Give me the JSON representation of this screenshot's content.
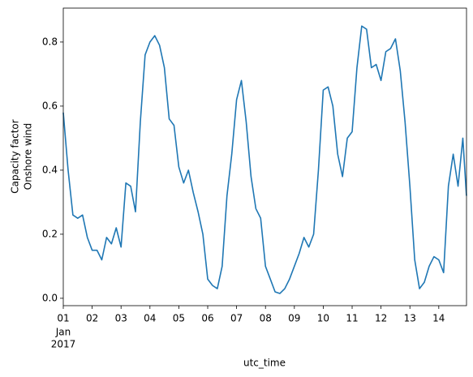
{
  "chart_data": {
    "type": "line",
    "ylabel": [
      "Capacity factor",
      "Onshore wind"
    ],
    "xlabel": "utc_time",
    "month_label": "Jan",
    "year_label": "2017",
    "color": "#1f77b4",
    "x": [
      1,
      1.167,
      1.333,
      1.5,
      1.667,
      1.833,
      2,
      2.167,
      2.333,
      2.5,
      2.667,
      2.833,
      3,
      3.167,
      3.333,
      3.5,
      3.667,
      3.833,
      4,
      4.167,
      4.333,
      4.5,
      4.667,
      4.833,
      5,
      5.167,
      5.333,
      5.5,
      5.667,
      5.833,
      6,
      6.167,
      6.333,
      6.5,
      6.667,
      6.833,
      7,
      7.167,
      7.333,
      7.5,
      7.667,
      7.833,
      8,
      8.167,
      8.333,
      8.5,
      8.667,
      8.833,
      9,
      9.167,
      9.333,
      9.5,
      9.667,
      9.833,
      10,
      10.167,
      10.333,
      10.5,
      10.667,
      10.833,
      11,
      11.167,
      11.333,
      11.5,
      11.667,
      11.833,
      12,
      12.167,
      12.333,
      12.5,
      12.667,
      12.833,
      13,
      13.167,
      13.333,
      13.5,
      13.667,
      13.833,
      14,
      14.167,
      14.333,
      14.5,
      14.667,
      14.833,
      14.958
    ],
    "values": [
      0.58,
      0.4,
      0.26,
      0.25,
      0.26,
      0.19,
      0.15,
      0.15,
      0.12,
      0.19,
      0.17,
      0.22,
      0.16,
      0.36,
      0.35,
      0.27,
      0.55,
      0.76,
      0.8,
      0.82,
      0.79,
      0.72,
      0.56,
      0.54,
      0.41,
      0.36,
      0.4,
      0.33,
      0.27,
      0.2,
      0.06,
      0.04,
      0.03,
      0.1,
      0.32,
      0.45,
      0.62,
      0.68,
      0.55,
      0.38,
      0.28,
      0.25,
      0.1,
      0.06,
      0.02,
      0.015,
      0.03,
      0.06,
      0.1,
      0.14,
      0.19,
      0.16,
      0.2,
      0.4,
      0.65,
      0.66,
      0.6,
      0.45,
      0.38,
      0.5,
      0.52,
      0.72,
      0.85,
      0.84,
      0.72,
      0.73,
      0.68,
      0.77,
      0.78,
      0.81,
      0.71,
      0.55,
      0.35,
      0.12,
      0.03,
      0.05,
      0.1,
      0.13,
      0.12,
      0.08,
      0.35,
      0.45,
      0.35,
      0.5,
      0.32
    ],
    "xlim": [
      1,
      14.96
    ],
    "xticks": [
      {
        "value": 1,
        "label": "01"
      },
      {
        "value": 2,
        "label": "02"
      },
      {
        "value": 3,
        "label": "03"
      },
      {
        "value": 4,
        "label": "04"
      },
      {
        "value": 5,
        "label": "05"
      },
      {
        "value": 6,
        "label": "06"
      },
      {
        "value": 7,
        "label": "07"
      },
      {
        "value": 8,
        "label": "08"
      },
      {
        "value": 9,
        "label": "09"
      },
      10,
      11,
      12,
      13,
      14
    ],
    "ylim": [
      -0.023,
      0.906
    ],
    "yticks": [
      {
        "value": 0,
        "label": "0.0"
      },
      0.2,
      0.4,
      0.6,
      0.8
    ]
  }
}
